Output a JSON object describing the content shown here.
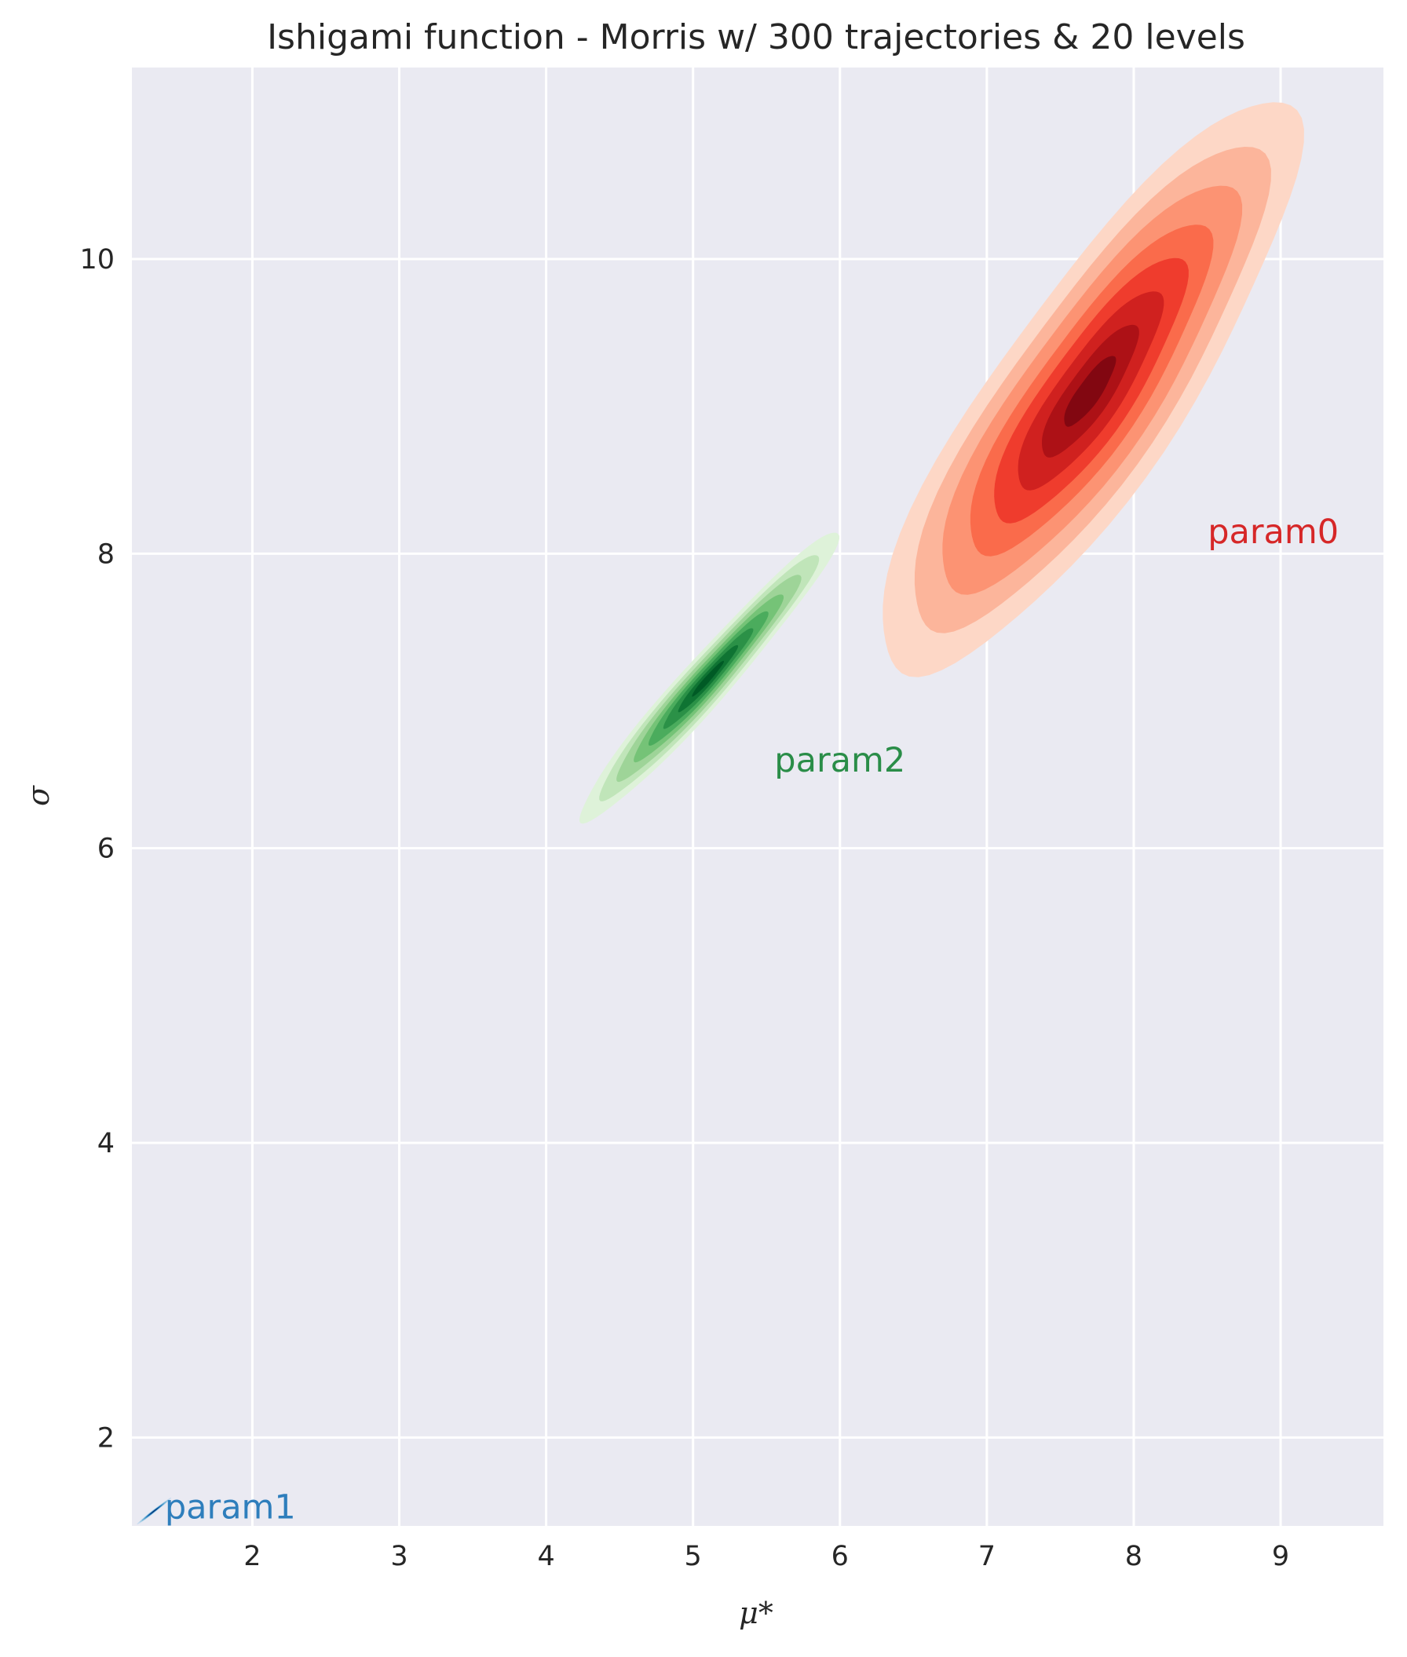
{
  "chart_data": {
    "type": "kde_contour",
    "title": "Ishigami function - Morris w/ 300 trajectories & 20 levels",
    "xlabel": "μ*",
    "ylabel": "σ",
    "xlim": [
      1.18,
      9.7
    ],
    "ylim": [
      1.4,
      11.3
    ],
    "xticks": [
      2,
      3,
      4,
      5,
      6,
      7,
      8,
      9
    ],
    "yticks": [
      2,
      4,
      6,
      8,
      10
    ],
    "grid": true,
    "background": "#eaeaf2",
    "series": [
      {
        "name": "param0",
        "color": "#d62728",
        "palette": [
          "#fdd7c6",
          "#fcb59b",
          "#fc9373",
          "#fa6b4b",
          "#ef3c2d",
          "#d0211f",
          "#ad1116",
          "#820711"
        ],
        "center": [
          7.7,
          9.1
        ],
        "sd": [
          0.55,
          0.75
        ],
        "correlation": 0.85,
        "label_pos": [
          8.95,
          8.15
        ]
      },
      {
        "name": "param2",
        "color": "#2a8d48",
        "palette": [
          "#def2d9",
          "#c0e5b9",
          "#9ed498",
          "#75c377",
          "#4bac5d",
          "#2b9147",
          "#0f7433",
          "#005a25"
        ],
        "center": [
          5.1,
          7.15
        ],
        "sd": [
          0.34,
          0.38
        ],
        "correlation": 0.97,
        "label_pos": [
          6.0,
          6.6
        ]
      },
      {
        "name": "param1",
        "color": "#2e7ebc",
        "palette": [
          "#c6dbef",
          "#9ecae1",
          "#6baed6",
          "#4292c6",
          "#2171b5",
          "#08519c",
          "#08306b",
          "#08306b"
        ],
        "center": [
          1.33,
          1.5
        ],
        "sd": [
          0.045,
          0.035
        ],
        "correlation": 0.99,
        "label_pos": [
          1.85,
          1.53
        ]
      }
    ]
  }
}
